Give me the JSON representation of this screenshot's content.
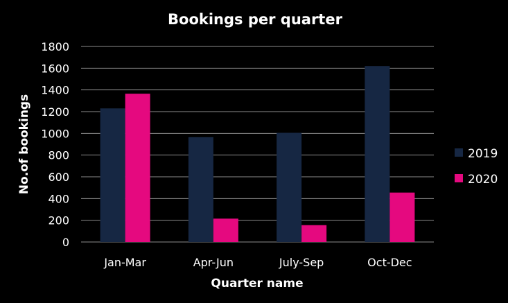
{
  "chart_data": {
    "type": "bar",
    "title": "Bookings per quarter",
    "xlabel": "Quarter name",
    "ylabel": "No.of bookings",
    "categories": [
      "Jan-Mar",
      "Apr-Jun",
      "July-Sep",
      "Oct-Dec"
    ],
    "series": [
      {
        "name": "2019",
        "color": "#162743",
        "values": [
          1230,
          965,
          1005,
          1620
        ]
      },
      {
        "name": "2020",
        "color": "#e5097f",
        "values": [
          1365,
          215,
          155,
          455
        ]
      }
    ],
    "ylim": [
      0,
      1800
    ],
    "yticks": [
      0,
      200,
      400,
      600,
      800,
      1000,
      1200,
      1400,
      1600,
      1800
    ],
    "grid": true,
    "legend": "right",
    "background": "#000000",
    "gridColor": "#8c8c8c"
  }
}
